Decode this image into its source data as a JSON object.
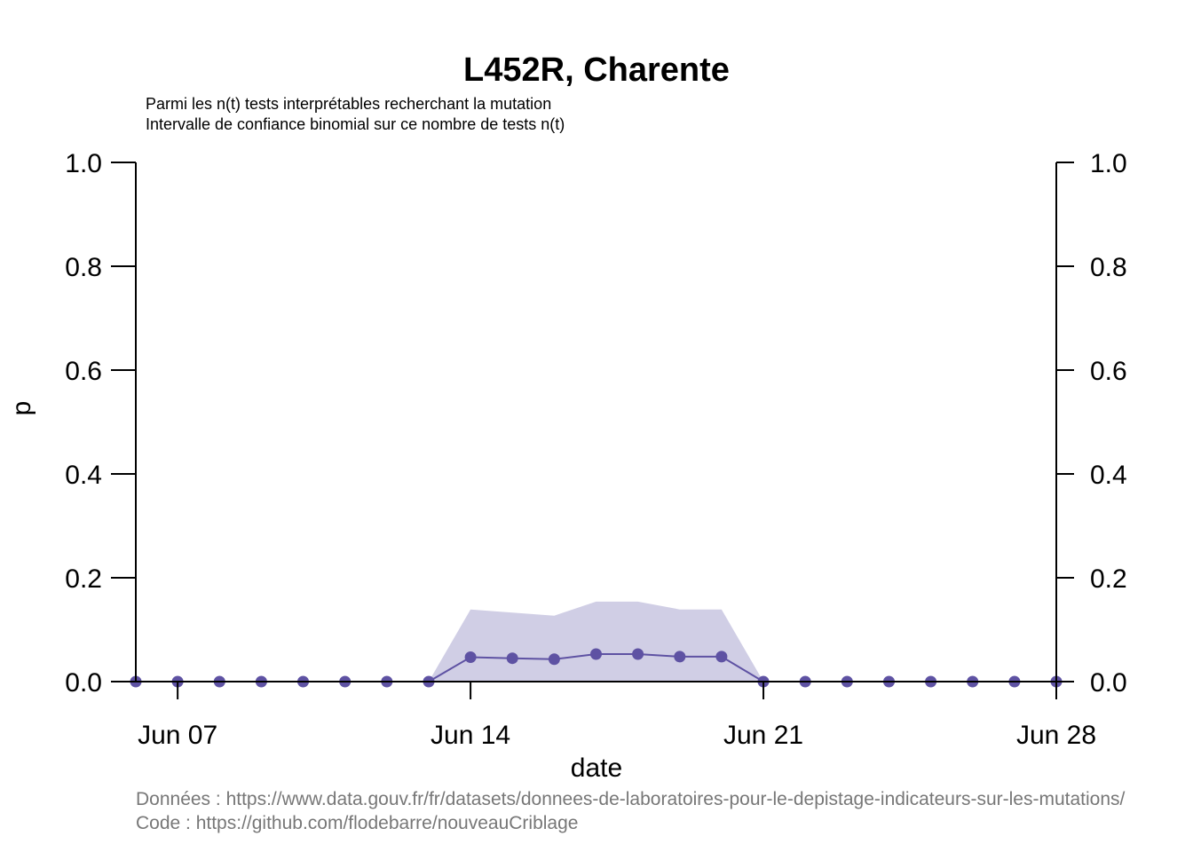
{
  "chart_data": {
    "type": "line",
    "title": "L452R, Charente",
    "subtitle_lines": [
      "Parmi les n(t) tests interprétables recherchant la mutation",
      "Intervalle de confiance binomial sur ce nombre de tests n(t)"
    ],
    "xlabel": "date",
    "ylabel": "p",
    "ylim": [
      0,
      1
    ],
    "yticks": [
      "0.0",
      "0.2",
      "0.4",
      "0.6",
      "0.8",
      "1.0"
    ],
    "xlim": [
      "2021-06-06",
      "2021-06-28"
    ],
    "xticks": [
      {
        "date": "2021-06-07",
        "label": "Jun 07"
      },
      {
        "date": "2021-06-14",
        "label": "Jun 14"
      },
      {
        "date": "2021-06-21",
        "label": "Jun 21"
      },
      {
        "date": "2021-06-28",
        "label": "Jun 28"
      }
    ],
    "grid": false,
    "series": [
      {
        "color": "#5e52a3",
        "ci_color": "#d0cee5",
        "points": [
          {
            "date": "2021-06-06",
            "p": 0.0,
            "lo": 0.0,
            "hi": 0.0
          },
          {
            "date": "2021-06-07",
            "p": 0.0,
            "lo": 0.0,
            "hi": 0.0
          },
          {
            "date": "2021-06-08",
            "p": 0.0,
            "lo": 0.0,
            "hi": 0.0
          },
          {
            "date": "2021-06-09",
            "p": 0.0,
            "lo": 0.0,
            "hi": 0.0
          },
          {
            "date": "2021-06-10",
            "p": 0.0,
            "lo": 0.0,
            "hi": 0.0
          },
          {
            "date": "2021-06-11",
            "p": 0.0,
            "lo": 0.0,
            "hi": 0.0
          },
          {
            "date": "2021-06-12",
            "p": 0.0,
            "lo": 0.0,
            "hi": 0.0
          },
          {
            "date": "2021-06-13",
            "p": 0.0,
            "lo": 0.0,
            "hi": 0.0
          },
          {
            "date": "2021-06-14",
            "p": 0.047,
            "lo": 0.0,
            "hi": 0.139
          },
          {
            "date": "2021-06-15",
            "p": 0.045,
            "lo": 0.0,
            "hi": 0.133
          },
          {
            "date": "2021-06-16",
            "p": 0.043,
            "lo": 0.0,
            "hi": 0.127
          },
          {
            "date": "2021-06-17",
            "p": 0.053,
            "lo": 0.0,
            "hi": 0.154
          },
          {
            "date": "2021-06-18",
            "p": 0.053,
            "lo": 0.0,
            "hi": 0.154
          },
          {
            "date": "2021-06-19",
            "p": 0.048,
            "lo": 0.0,
            "hi": 0.139
          },
          {
            "date": "2021-06-20",
            "p": 0.048,
            "lo": 0.0,
            "hi": 0.139
          },
          {
            "date": "2021-06-21",
            "p": 0.0,
            "lo": 0.0,
            "hi": 0.0
          },
          {
            "date": "2021-06-22",
            "p": 0.0,
            "lo": 0.0,
            "hi": 0.0
          },
          {
            "date": "2021-06-23",
            "p": 0.0,
            "lo": 0.0,
            "hi": 0.0
          },
          {
            "date": "2021-06-24",
            "p": 0.0,
            "lo": 0.0,
            "hi": 0.0
          },
          {
            "date": "2021-06-25",
            "p": 0.0,
            "lo": 0.0,
            "hi": 0.0
          },
          {
            "date": "2021-06-26",
            "p": 0.0,
            "lo": 0.0,
            "hi": 0.0
          },
          {
            "date": "2021-06-27",
            "p": 0.0,
            "lo": 0.0,
            "hi": 0.0
          },
          {
            "date": "2021-06-28",
            "p": 0.0,
            "lo": 0.0,
            "hi": 0.0
          }
        ]
      }
    ],
    "footer_lines": [
      "Données : https://www.data.gouv.fr/fr/datasets/donnees-de-laboratoires-pour-le-depistage-indicateurs-sur-les-mutations/",
      "Code : https://github.com/flodebarre/nouveauCriblage"
    ]
  }
}
